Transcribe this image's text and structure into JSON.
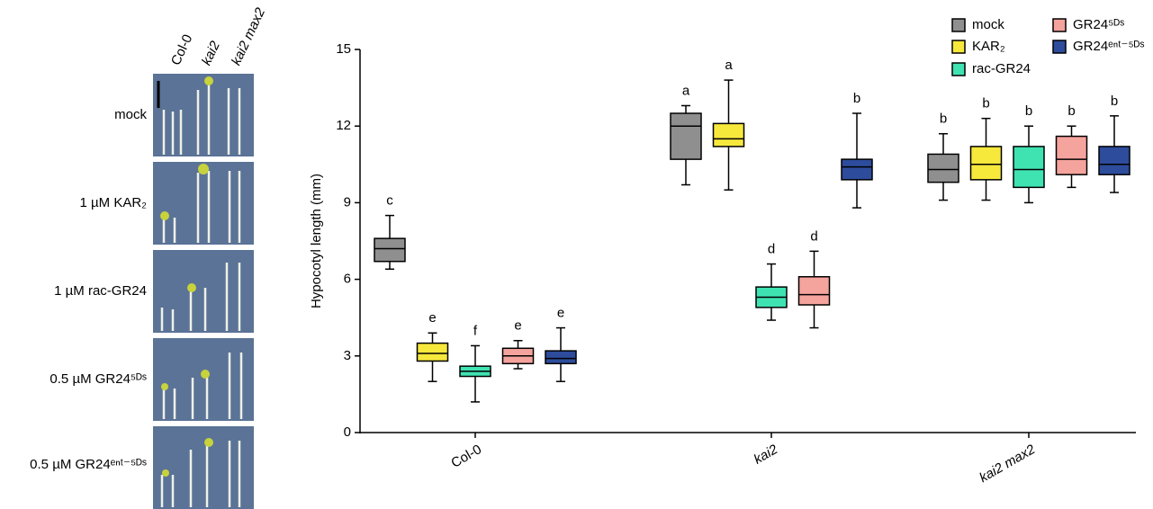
{
  "photo_panel": {
    "column_labels": [
      "Col-0",
      "kai2",
      "kai2 max2"
    ],
    "row_labels": [
      "mock",
      "1 µM KAR₂",
      "1 µM rac-GR24",
      "0.5 µM GR24⁵ᴰˢ",
      "0.5 µM GR24ᵉⁿᵗ⁻⁵ᴰˢ"
    ]
  },
  "chart_data": {
    "type": "box",
    "y_label": "Hypocotyl length (mm)",
    "categories": [
      "Col-0",
      "kai2",
      "kai2 max2"
    ],
    "ylim": [
      0,
      15
    ],
    "yticks": [
      0,
      3,
      6,
      9,
      12,
      15
    ],
    "legend": "upper right",
    "series": [
      {
        "name": "mock",
        "color": "#8f8f8f",
        "letters": [
          "c",
          "a",
          "b"
        ],
        "values": [
          {
            "min": 6.4,
            "q1": 6.7,
            "median": 7.2,
            "q3": 7.6,
            "max": 8.5
          },
          {
            "min": 9.7,
            "q1": 10.7,
            "median": 12.0,
            "q3": 12.5,
            "max": 12.8
          },
          {
            "min": 9.1,
            "q1": 9.8,
            "median": 10.3,
            "q3": 10.9,
            "max": 11.7
          }
        ]
      },
      {
        "name": "KAR₂",
        "color": "#f7e83c",
        "letters": [
          "e",
          "a",
          "b"
        ],
        "values": [
          {
            "min": 2.0,
            "q1": 2.8,
            "median": 3.1,
            "q3": 3.5,
            "max": 3.9
          },
          {
            "min": 9.5,
            "q1": 11.2,
            "median": 11.5,
            "q3": 12.1,
            "max": 13.8
          },
          {
            "min": 9.1,
            "q1": 9.9,
            "median": 10.5,
            "q3": 11.2,
            "max": 12.3
          }
        ]
      },
      {
        "name": "rac-GR24",
        "color": "#3fe3b2",
        "letters": [
          "f",
          "d",
          "b"
        ],
        "values": [
          {
            "min": 1.2,
            "q1": 2.2,
            "median": 2.4,
            "q3": 2.6,
            "max": 3.4
          },
          {
            "min": 4.4,
            "q1": 4.9,
            "median": 5.3,
            "q3": 5.7,
            "max": 6.6
          },
          {
            "min": 9.0,
            "q1": 9.6,
            "median": 10.3,
            "q3": 11.2,
            "max": 12.0
          }
        ]
      },
      {
        "name": "GR24⁵ᴰˢ",
        "color": "#f5a39d",
        "letters": [
          "e",
          "d",
          "b"
        ],
        "values": [
          {
            "min": 2.5,
            "q1": 2.7,
            "median": 3.0,
            "q3": 3.3,
            "max": 3.6
          },
          {
            "min": 4.1,
            "q1": 5.0,
            "median": 5.4,
            "q3": 6.1,
            "max": 7.1
          },
          {
            "min": 9.6,
            "q1": 10.1,
            "median": 10.7,
            "q3": 11.6,
            "max": 12.0
          }
        ]
      },
      {
        "name": "GR24ᵉⁿᵗ⁻⁵ᴰˢ",
        "color": "#2d4c9c",
        "letters": [
          "e",
          "b",
          "b"
        ],
        "values": [
          {
            "min": 2.0,
            "q1": 2.7,
            "median": 2.9,
            "q3": 3.2,
            "max": 4.1
          },
          {
            "min": 8.8,
            "q1": 9.9,
            "median": 10.4,
            "q3": 10.7,
            "max": 12.5
          },
          {
            "min": 9.4,
            "q1": 10.1,
            "median": 10.5,
            "q3": 11.2,
            "max": 12.4
          }
        ]
      }
    ]
  }
}
